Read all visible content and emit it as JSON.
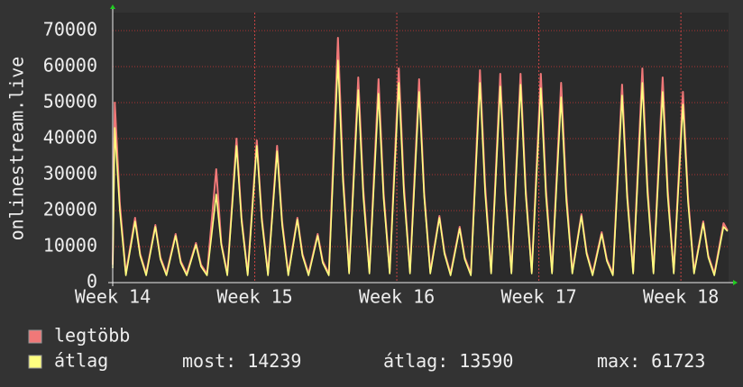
{
  "chart_data": {
    "type": "line",
    "y_label": "onlinestream.live",
    "x": [
      0,
      0.1,
      0.35,
      0.65,
      1.1,
      1.35,
      1.65,
      2.1,
      2.35,
      2.65,
      3.1,
      3.35,
      3.65,
      4.1,
      4.35,
      4.65,
      5.1,
      5.35,
      5.65,
      6.1,
      6.35,
      6.65,
      7.1,
      7.35,
      7.65,
      8.1,
      8.35,
      8.65,
      9.1,
      9.35,
      9.65,
      10.1,
      10.35,
      10.65,
      11.1,
      11.35,
      11.65,
      12.1,
      12.35,
      12.65,
      13.1,
      13.35,
      13.65,
      14.1,
      14.35,
      14.65,
      15.1,
      15.35,
      15.65,
      16.1,
      16.35,
      16.65,
      17.1,
      17.35,
      17.65,
      18.1,
      18.35,
      18.65,
      19.1,
      19.35,
      19.65,
      20.1,
      20.35,
      20.65,
      21.1,
      21.35,
      21.65,
      22.1,
      22.35,
      22.65,
      23.1,
      23.35,
      23.65,
      24.1,
      24.35,
      24.65,
      25.1,
      25.35,
      25.65,
      26.1,
      26.35,
      26.65,
      27.1,
      27.35,
      27.65,
      28.1,
      28.35,
      28.65,
      29.1,
      29.35,
      29.65,
      30.1,
      30.3
    ],
    "series": [
      {
        "name": "legtöbb",
        "color": "#f07878",
        "values": [
          5000,
          50000,
          22000,
          2500,
          18000,
          8000,
          2500,
          16000,
          7000,
          2500,
          13500,
          6000,
          2500,
          11000,
          5000,
          2500,
          31500,
          11000,
          2500,
          40000,
          18000,
          2500,
          39500,
          18000,
          2500,
          38000,
          17000,
          2500,
          18000,
          8000,
          2500,
          13500,
          6000,
          2500,
          68000,
          30000,
          3000,
          57000,
          26000,
          3000,
          56500,
          25000,
          3000,
          59500,
          27000,
          3000,
          56500,
          25000,
          3000,
          18500,
          8500,
          2500,
          15500,
          7000,
          2500,
          59000,
          27000,
          3000,
          58000,
          26000,
          3000,
          58000,
          26000,
          3000,
          58000,
          26000,
          3000,
          55500,
          25000,
          3000,
          19000,
          8500,
          2500,
          14000,
          6500,
          2500,
          55000,
          25000,
          3000,
          59500,
          27000,
          3000,
          57000,
          26000,
          3000,
          53000,
          24000,
          3000,
          17000,
          7500,
          2500,
          16500,
          14500
        ]
      },
      {
        "name": "átlag",
        "color": "#ffff80",
        "values": [
          4000,
          43000,
          20000,
          2000,
          17000,
          7500,
          2000,
          15500,
          6500,
          2000,
          13000,
          5500,
          2000,
          10500,
          4500,
          2000,
          24500,
          10500,
          2000,
          38000,
          17000,
          2000,
          38000,
          17000,
          2000,
          36500,
          16000,
          2000,
          17500,
          7500,
          2000,
          13000,
          5500,
          2000,
          61723,
          28000,
          2500,
          53500,
          24000,
          2500,
          52500,
          23500,
          2500,
          55500,
          25000,
          2500,
          53000,
          24000,
          2500,
          18000,
          8000,
          2000,
          15000,
          6500,
          2000,
          55500,
          25000,
          2500,
          54500,
          24500,
          2500,
          55000,
          24500,
          2500,
          54000,
          24000,
          2500,
          51500,
          23000,
          2500,
          18500,
          8000,
          2000,
          13500,
          6000,
          2000,
          52000,
          23500,
          2500,
          55500,
          25000,
          2500,
          53000,
          24000,
          2500,
          49500,
          22500,
          2500,
          16500,
          7000,
          2000,
          15500,
          14239
        ]
      }
    ],
    "xlim": [
      0,
      30.35
    ],
    "xticks": [
      {
        "value": 0,
        "label": "Week 14"
      },
      {
        "value": 7,
        "label": "Week 15"
      },
      {
        "value": 14,
        "label": "Week 16"
      },
      {
        "value": 21,
        "label": "Week 17"
      },
      {
        "value": 28,
        "label": "Week 18"
      }
    ],
    "ylim": [
      0,
      75000
    ],
    "yticks": [
      0,
      10000,
      20000,
      30000,
      40000,
      50000,
      60000,
      70000
    ],
    "grid": true,
    "stats": [
      {
        "label": "most:",
        "value": 14239
      },
      {
        "label": "átlag:",
        "value": 13590
      },
      {
        "label": "max:",
        "value": 61723
      }
    ]
  }
}
